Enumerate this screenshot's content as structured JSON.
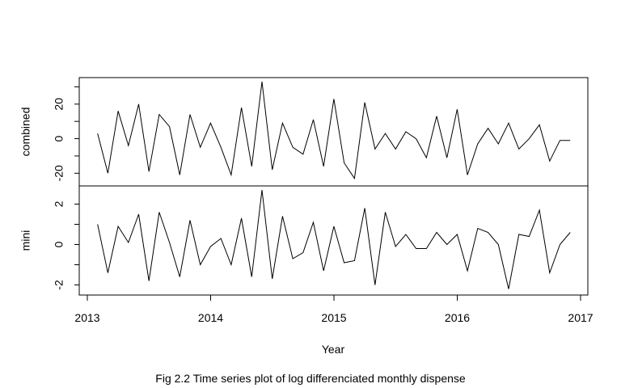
{
  "chart_data": {
    "type": "line",
    "xlabel": "Year",
    "caption": "Fig 2.2 Time series plot of log differenciated monthly dispense",
    "x_ticks": [
      2013,
      2014,
      2015,
      2016,
      2017
    ],
    "xlim": [
      2013,
      2017
    ],
    "x_start": 2013.083,
    "x_step": 0.08333,
    "panels": [
      {
        "ylabel": "combined",
        "ylim": [
          -25,
          33
        ],
        "y_ticks": [
          -20,
          0,
          20
        ],
        "y_minor_ticks": [
          -30,
          -10,
          10,
          30
        ],
        "values": [
          3,
          -20,
          16,
          -4,
          20,
          -19,
          14,
          7,
          -21,
          14,
          -5,
          9,
          -5,
          -21,
          18,
          -16,
          33,
          -18,
          9,
          -5,
          -9,
          11,
          -16,
          23,
          -14,
          -23,
          21,
          -6,
          3,
          -6,
          4,
          0,
          -11,
          13,
          -11,
          17,
          -21,
          -3,
          6,
          -3,
          9,
          -6,
          0,
          8,
          -13,
          -1,
          -1
        ]
      },
      {
        "ylabel": "mini",
        "ylim": [
          -2.3,
          2.7
        ],
        "y_ticks": [
          -2,
          0,
          2
        ],
        "y_minor_ticks": [
          -1,
          1
        ],
        "values": [
          1.0,
          -1.4,
          0.9,
          0.1,
          1.5,
          -1.8,
          1.6,
          0.1,
          -1.6,
          1.2,
          -1.0,
          -0.1,
          0.3,
          -1.0,
          1.3,
          -1.6,
          2.7,
          -1.7,
          1.4,
          -0.7,
          -0.4,
          1.1,
          -1.3,
          0.9,
          -0.9,
          -0.8,
          1.8,
          -2.0,
          1.6,
          -0.1,
          0.5,
          -0.2,
          -0.2,
          0.6,
          0.0,
          0.5,
          -1.3,
          0.8,
          0.6,
          0.0,
          -2.2,
          0.5,
          0.4,
          1.7,
          -1.4,
          0.0,
          0.6
        ]
      }
    ]
  }
}
